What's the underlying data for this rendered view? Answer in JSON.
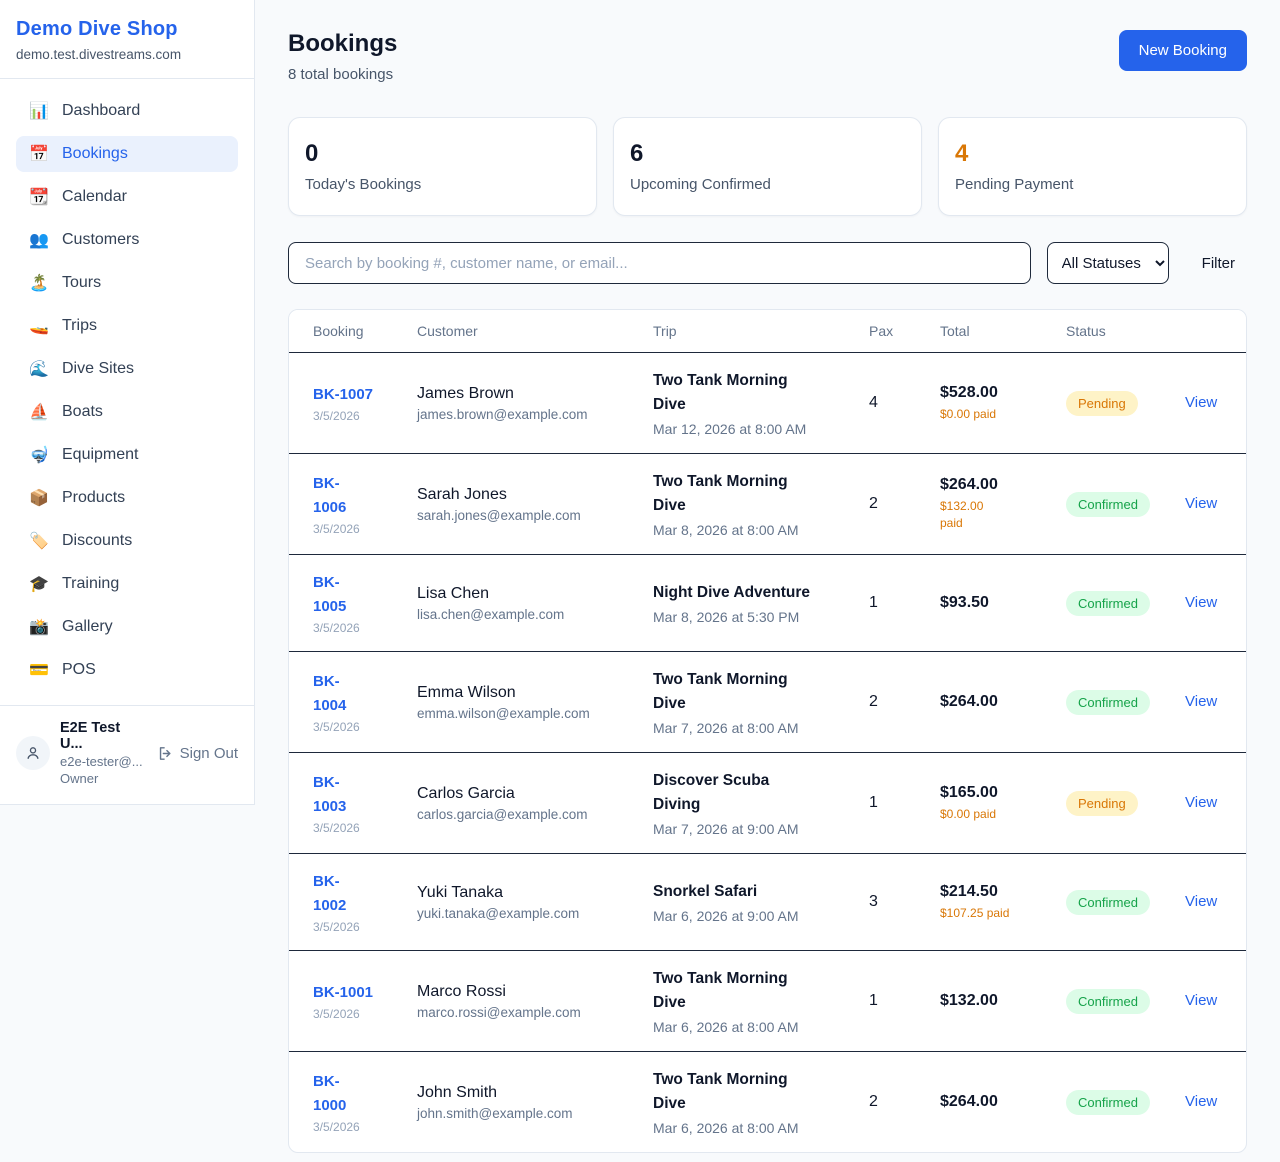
{
  "sidebar": {
    "brand": {
      "name": "Demo Dive Shop",
      "domain": "demo.test.divestreams.com"
    },
    "nav": [
      {
        "icon": "📊",
        "icon_name": "dashboard-chart-icon",
        "label": "Dashboard",
        "active": false
      },
      {
        "icon": "📅",
        "icon_name": "bookings-calendar-icon",
        "label": "Bookings",
        "active": true
      },
      {
        "icon": "📆",
        "icon_name": "calendar-icon",
        "label": "Calendar",
        "active": false
      },
      {
        "icon": "👥",
        "icon_name": "customers-people-icon",
        "label": "Customers",
        "active": false
      },
      {
        "icon": "🏝️",
        "icon_name": "tours-island-icon",
        "label": "Tours",
        "active": false
      },
      {
        "icon": "🚤",
        "icon_name": "trips-speedboat-icon",
        "label": "Trips",
        "active": false
      },
      {
        "icon": "🌊",
        "icon_name": "dive-sites-wave-icon",
        "label": "Dive Sites",
        "active": false
      },
      {
        "icon": "⛵",
        "icon_name": "boats-sailboat-icon",
        "label": "Boats",
        "active": false
      },
      {
        "icon": "🤿",
        "icon_name": "equipment-mask-icon",
        "label": "Equipment",
        "active": false
      },
      {
        "icon": "📦",
        "icon_name": "products-package-icon",
        "label": "Products",
        "active": false
      },
      {
        "icon": "🏷️",
        "icon_name": "discounts-tag-icon",
        "label": "Discounts",
        "active": false
      },
      {
        "icon": "🎓",
        "icon_name": "training-grad-cap-icon",
        "label": "Training",
        "active": false
      },
      {
        "icon": "📸",
        "icon_name": "gallery-camera-icon",
        "label": "Gallery",
        "active": false
      },
      {
        "icon": "💳",
        "icon_name": "pos-card-icon",
        "label": "POS",
        "active": false
      }
    ],
    "user": {
      "name": "E2E Test U...",
      "email": "e2e-tester@...",
      "role": "Owner",
      "sign_out": "Sign Out"
    }
  },
  "header": {
    "title": "Bookings",
    "subtitle": "8 total bookings",
    "new_booking": "New Booking"
  },
  "stats": [
    {
      "value": "0",
      "label": "Today's Bookings",
      "highlight": false
    },
    {
      "value": "6",
      "label": "Upcoming Confirmed",
      "highlight": false
    },
    {
      "value": "4",
      "label": "Pending Payment",
      "highlight": true
    }
  ],
  "filters": {
    "search_placeholder": "Search by booking #, customer name, or email...",
    "status_selected": "All Statuses",
    "filter_label": "Filter"
  },
  "table": {
    "headers": [
      "Booking",
      "Customer",
      "Trip",
      "Pax",
      "Total",
      "Status",
      ""
    ],
    "rows": [
      {
        "id": "BK-1007",
        "date": "3/5/2026",
        "customer": "James Brown",
        "email": "james.brown@example.com",
        "trip": "Two Tank Morning\nDive",
        "trip_date": "Mar 12, 2026 at 8:00 AM",
        "pax": "4",
        "total": "$528.00",
        "paid": "$0.00 paid",
        "status": "Pending",
        "view": "View"
      },
      {
        "id": "BK-\n1006",
        "date": "3/5/2026",
        "customer": "Sarah Jones",
        "email": "sarah.jones@example.com",
        "trip": "Two Tank Morning\nDive",
        "trip_date": "Mar 8, 2026 at 8:00 AM",
        "pax": "2",
        "total": "$264.00",
        "paid": "$132.00\npaid",
        "status": "Confirmed",
        "view": "View"
      },
      {
        "id": "BK-\n1005",
        "date": "3/5/2026",
        "customer": "Lisa Chen",
        "email": "lisa.chen@example.com",
        "trip": "Night Dive Adventure",
        "trip_date": "Mar 8, 2026 at 5:30 PM",
        "pax": "1",
        "total": "$93.50",
        "paid": "",
        "status": "Confirmed",
        "view": "View"
      },
      {
        "id": "BK-\n1004",
        "date": "3/5/2026",
        "customer": "Emma Wilson",
        "email": "emma.wilson@example.com",
        "trip": "Two Tank Morning\nDive",
        "trip_date": "Mar 7, 2026 at 8:00 AM",
        "pax": "2",
        "total": "$264.00",
        "paid": "",
        "status": "Confirmed",
        "view": "View"
      },
      {
        "id": "BK-\n1003",
        "date": "3/5/2026",
        "customer": "Carlos Garcia",
        "email": "carlos.garcia@example.com",
        "trip": "Discover Scuba\nDiving",
        "trip_date": "Mar 7, 2026 at 9:00 AM",
        "pax": "1",
        "total": "$165.00",
        "paid": "$0.00 paid",
        "status": "Pending",
        "view": "View"
      },
      {
        "id": "BK-\n1002",
        "date": "3/5/2026",
        "customer": "Yuki Tanaka",
        "email": "yuki.tanaka@example.com",
        "trip": "Snorkel Safari",
        "trip_date": "Mar 6, 2026 at 9:00 AM",
        "pax": "3",
        "total": "$214.50",
        "paid": "$107.25 paid",
        "status": "Confirmed",
        "view": "View"
      },
      {
        "id": "BK-1001",
        "date": "3/5/2026",
        "customer": "Marco Rossi",
        "email": "marco.rossi@example.com",
        "trip": "Two Tank Morning\nDive",
        "trip_date": "Mar 6, 2026 at 8:00 AM",
        "pax": "1",
        "total": "$132.00",
        "paid": "",
        "status": "Confirmed",
        "view": "View"
      },
      {
        "id": "BK-\n1000",
        "date": "3/5/2026",
        "customer": "John Smith",
        "email": "john.smith@example.com",
        "trip": "Two Tank Morning\nDive",
        "trip_date": "Mar 6, 2026 at 8:00 AM",
        "pax": "2",
        "total": "$264.00",
        "paid": "",
        "status": "Confirmed",
        "view": "View"
      }
    ]
  },
  "colors": {
    "accent_blue": "#2563eb",
    "pending_orange": "#d97706",
    "pending_bg": "#fef3c7",
    "confirmed_green": "#16a34a",
    "confirmed_bg": "#dcfce7",
    "dark_border": "#1e293b",
    "light_border": "#e2e8f0",
    "page_bg": "#f8fafc"
  }
}
